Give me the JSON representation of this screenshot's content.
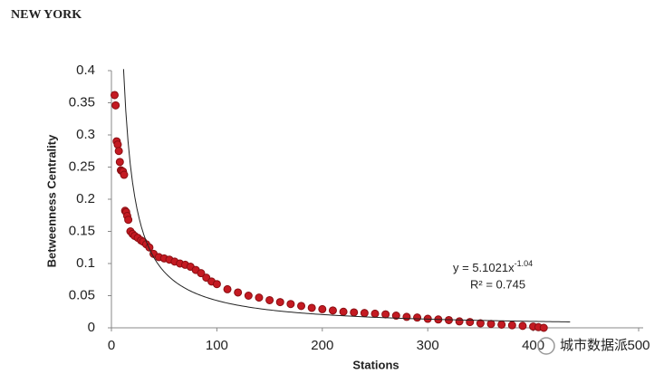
{
  "chart_data": {
    "type": "scatter",
    "title": "NEW YORK",
    "x_label": "Stations",
    "y_label": "Betweenness Centrality",
    "watermark": "城市数据派",
    "color": "#c41a22",
    "xlim": [
      0,
      500
    ],
    "xticks": [
      0,
      100,
      200,
      300,
      400,
      500
    ],
    "ylim": [
      0,
      0.4
    ],
    "yticks": [
      0,
      0.05,
      0.1,
      0.15,
      0.2,
      0.25,
      0.3,
      0.35,
      0.4
    ],
    "x": [
      3,
      4,
      5,
      6,
      7,
      8,
      9,
      10,
      11,
      12,
      13,
      14,
      15,
      16,
      18,
      20,
      22,
      25,
      28,
      30,
      33,
      36,
      40,
      45,
      50,
      55,
      60,
      65,
      70,
      75,
      80,
      85,
      90,
      95,
      100,
      110,
      120,
      130,
      140,
      150,
      160,
      170,
      180,
      190,
      200,
      210,
      220,
      230,
      240,
      250,
      260,
      270,
      280,
      290,
      300,
      310,
      320,
      330,
      340,
      350,
      360,
      370,
      380,
      390,
      400,
      405,
      410
    ],
    "values": [
      0.362,
      0.346,
      0.29,
      0.285,
      0.275,
      0.258,
      0.245,
      0.244,
      0.243,
      0.238,
      0.182,
      0.18,
      0.174,
      0.168,
      0.15,
      0.146,
      0.143,
      0.14,
      0.136,
      0.134,
      0.13,
      0.125,
      0.115,
      0.11,
      0.108,
      0.106,
      0.103,
      0.1,
      0.098,
      0.095,
      0.09,
      0.085,
      0.078,
      0.072,
      0.068,
      0.06,
      0.055,
      0.05,
      0.047,
      0.043,
      0.04,
      0.037,
      0.034,
      0.031,
      0.029,
      0.027,
      0.025,
      0.024,
      0.023,
      0.022,
      0.021,
      0.019,
      0.017,
      0.016,
      0.014,
      0.013,
      0.012,
      0.01,
      0.009,
      0.007,
      0.006,
      0.005,
      0.004,
      0.003,
      0.002,
      0.001,
      0
    ],
    "trendline": {
      "coefficient": 5.1021,
      "exponent": -1.04,
      "x_start": 11.5,
      "x_end": 435,
      "label": "y = 5.1021x",
      "label_exponent": "-1.04",
      "r2_label": "R² = 0.745"
    }
  }
}
